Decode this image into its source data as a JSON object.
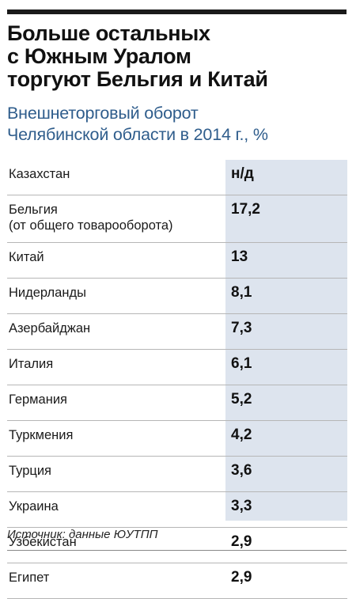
{
  "title": "Больше остальных\nс Южным Уралом\nторгуют Бельгия и Китай",
  "subtitle": "Внешнеторговый оборот\nЧелябинской области в 2014 г., %",
  "source": "Источник: данные ЮУТПП",
  "chart_data": {
    "type": "table",
    "title": "Больше остальных с Южным Уралом торгуют Бельгия и Китай",
    "subtitle": "Внешнеторговый оборот Челябинской области в 2014 г., %",
    "rows": [
      {
        "country": "Казахстан",
        "note": "",
        "value": "н/д"
      },
      {
        "country": "Бельгия",
        "note": "(от общего товарооборота)",
        "value": "17,2"
      },
      {
        "country": "Китай",
        "note": "",
        "value": "13"
      },
      {
        "country": "Нидерланды",
        "note": "",
        "value": "8,1"
      },
      {
        "country": "Азербайджан",
        "note": "",
        "value": "7,3"
      },
      {
        "country": "Италия",
        "note": "",
        "value": "6,1"
      },
      {
        "country": "Германия",
        "note": "",
        "value": "5,2"
      },
      {
        "country": "Туркмения",
        "note": "",
        "value": "4,2"
      },
      {
        "country": "Турция",
        "note": "",
        "value": "3,6"
      },
      {
        "country": "Украина",
        "note": "",
        "value": "3,3"
      },
      {
        "country": "Узбекистан",
        "note": "",
        "value": "2,9"
      },
      {
        "country": "Египет",
        "note": "",
        "value": "2,9"
      }
    ]
  }
}
